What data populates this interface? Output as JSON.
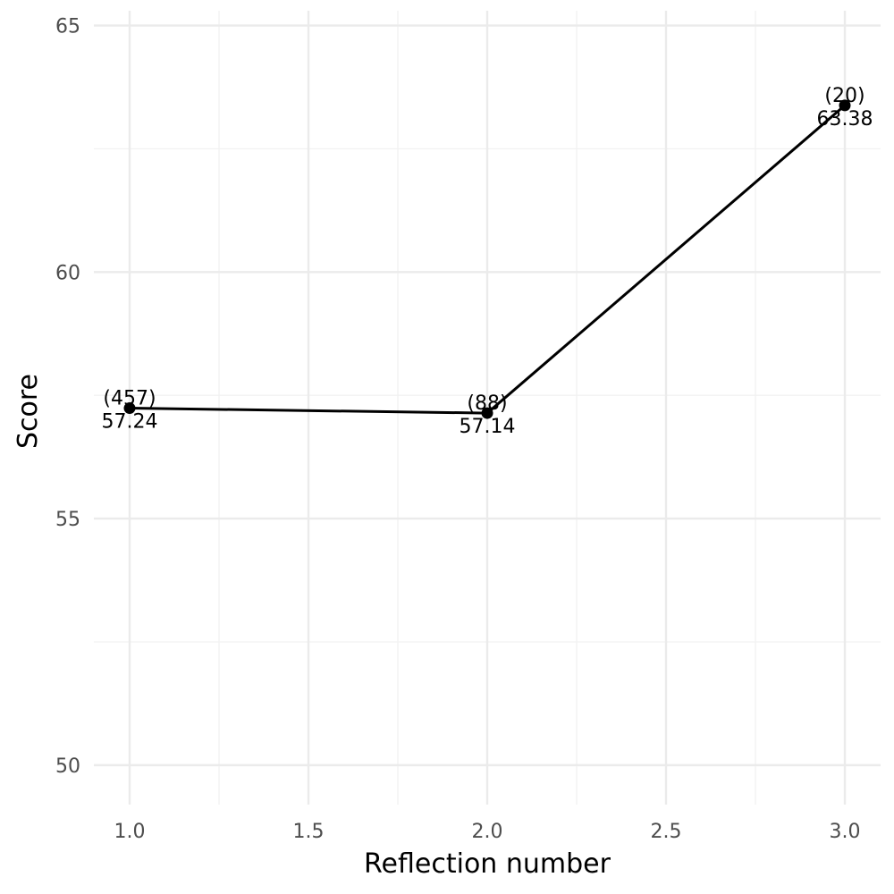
{
  "chart_data": {
    "type": "line",
    "xlabel": "Reflection number",
    "ylabel": "Score",
    "xlim": [
      0.9,
      3.1
    ],
    "ylim": [
      49.2,
      65.3
    ],
    "x_ticks": [
      1.0,
      1.5,
      2.0,
      2.5,
      3.0
    ],
    "x_tick_labels": [
      "1.0",
      "1.5",
      "2.0",
      "2.5",
      "3.0"
    ],
    "x_minor_ticks": [
      1.25,
      1.75,
      2.25,
      2.75
    ],
    "y_ticks": [
      50,
      55,
      60,
      65
    ],
    "y_tick_labels": [
      "50",
      "55",
      "60",
      "65"
    ],
    "y_minor_ticks": [
      52.5,
      57.5,
      62.5
    ],
    "grid": true,
    "legend": "none",
    "colors": {
      "line": "#000000",
      "point": "#000000",
      "grid_major": "#ebebeb",
      "grid_minor": "#f2f2f2",
      "tick_text": "#4d4d4d"
    },
    "series": [
      {
        "x": [
          1,
          2,
          3
        ],
        "y": [
          57.24,
          57.14,
          63.38
        ],
        "counts": [
          "(457)",
          "(88)",
          "(20)"
        ],
        "value_labels": [
          "57.24",
          "57.14",
          "63.38"
        ]
      }
    ]
  }
}
